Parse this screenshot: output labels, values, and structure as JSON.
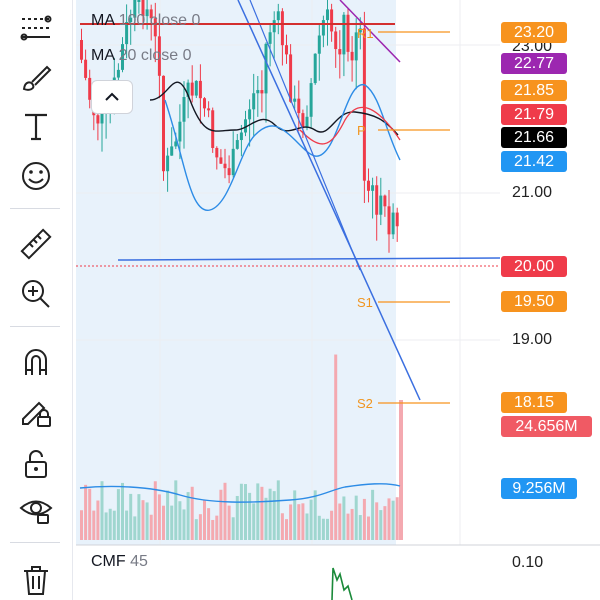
{
  "legend": {
    "ma100_name": "MA",
    "ma100_params": "100 close 0",
    "ma20_name": "MA",
    "ma20_params": "20 close 0"
  },
  "pivots": {
    "r1": "R1",
    "p": "P",
    "s1": "S1",
    "s2": "S2"
  },
  "price_axis": {
    "t21": "21.00",
    "t19": "19.00",
    "t23": "23.00"
  },
  "price_tags": [
    {
      "value": "23.20",
      "color": "#f7931e"
    },
    {
      "value": "22.77",
      "color": "#9c27b0"
    },
    {
      "value": "21.85",
      "color": "#f7931e"
    },
    {
      "value": "21.79",
      "color": "#ef3b4a"
    },
    {
      "value": "21.66",
      "color": "#000000"
    },
    {
      "value": "21.42",
      "color": "#2196f3"
    },
    {
      "value": "20.00",
      "color": "#ef3b4a"
    },
    {
      "value": "19.50",
      "color": "#f7931e"
    },
    {
      "value": "18.15",
      "color": "#f7931e"
    },
    {
      "value": "24.656M",
      "color": "#f05a64"
    },
    {
      "value": "9.256M",
      "color": "#2196f3"
    }
  ],
  "cmf": {
    "name": "CMF",
    "period": "45",
    "axis_value": "0.10"
  },
  "toolbar": {
    "icons": [
      "trend-lines-icon",
      "brush-icon",
      "text-icon",
      "emoji-icon",
      "ruler-icon",
      "zoom-in-icon",
      "magnet-icon",
      "lock-drawing-icon",
      "unlock-icon",
      "eye-icon",
      "trash-icon"
    ]
  },
  "colors": {
    "up": "#26a69a",
    "down": "#ef3b4a",
    "pivot": "#f7931e",
    "ma": "#2196f3",
    "trend": "#3b6fe0"
  }
}
